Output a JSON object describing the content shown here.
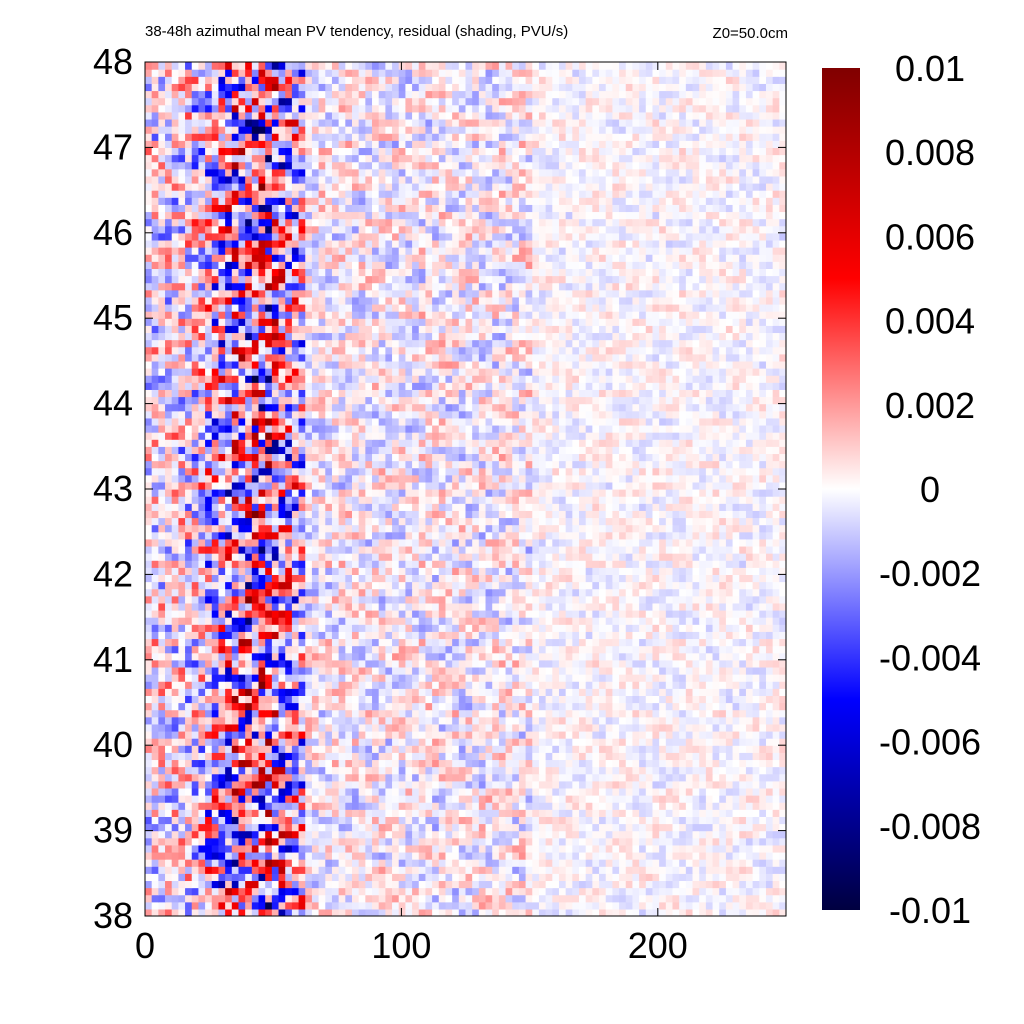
{
  "chart_data": {
    "type": "heatmap",
    "title": "38-48h azimuthal mean PV tendency, residual (shading, PVU/s)",
    "annotation": "Z0=50.0cm",
    "xlabel": "",
    "ylabel": "",
    "xlim": [
      0,
      250
    ],
    "ylim": [
      38,
      48
    ],
    "x_ticks": [
      0,
      100,
      200
    ],
    "x_tick_labels": [
      "0",
      "100",
      "200"
    ],
    "y_ticks": [
      38,
      39,
      40,
      41,
      42,
      43,
      44,
      45,
      46,
      47,
      48
    ],
    "y_tick_labels": [
      "38",
      "39",
      "40",
      "41",
      "42",
      "43",
      "44",
      "45",
      "46",
      "47",
      "48"
    ],
    "colorbar": {
      "range": [
        -0.01,
        0.01
      ],
      "tick_values": [
        0.01,
        0.008,
        0.006,
        0.004,
        0.002,
        0,
        -0.002,
        -0.004,
        -0.006,
        -0.008,
        -0.01
      ],
      "tick_labels": [
        "0.01",
        "0.008",
        "0.006",
        "0.004",
        "0.002",
        "0",
        "-0.002",
        "-0.004",
        "-0.006",
        "-0.008",
        "-0.01"
      ],
      "colormap": "blue-white-red",
      "colors": {
        "min": "#000040",
        "mid_low": "#0000ff",
        "zero": "#ffffff",
        "mid_high": "#ff0000",
        "max": "#800000"
      }
    },
    "grid": false,
    "field_description": {
      "active_band_x_range": [
        0,
        60
      ],
      "active_band_peak_abs": 0.009,
      "mid_region_x_range": [
        60,
        150
      ],
      "mid_region_abs": 0.002,
      "far_region_x_range": [
        150,
        250
      ],
      "far_region_abs": 0.001
    }
  }
}
